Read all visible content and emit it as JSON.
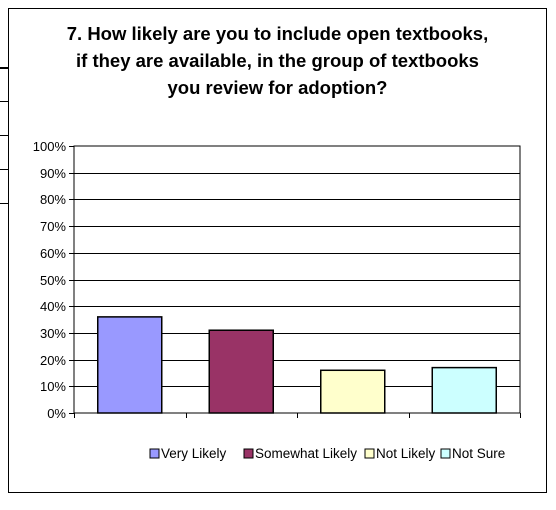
{
  "chart_data": {
    "type": "bar",
    "title_lines": [
      "7. How likely are you to include open textbooks,",
      "if they are available, in the group of textbooks",
      "you review for adoption?"
    ],
    "categories": [
      "Very Likely",
      "Somewhat Likely",
      "Not Likely",
      "Not Sure"
    ],
    "values": [
      36,
      31,
      16,
      17
    ],
    "colors": [
      "#9999ff",
      "#993366",
      "#ffffcc",
      "#ccffff"
    ],
    "ylim": [
      0,
      100
    ],
    "yticks": [
      "0%",
      "10%",
      "20%",
      "30%",
      "40%",
      "50%",
      "60%",
      "70%",
      "80%",
      "90%",
      "100%"
    ],
    "legend_position": "bottom",
    "grid": true
  }
}
